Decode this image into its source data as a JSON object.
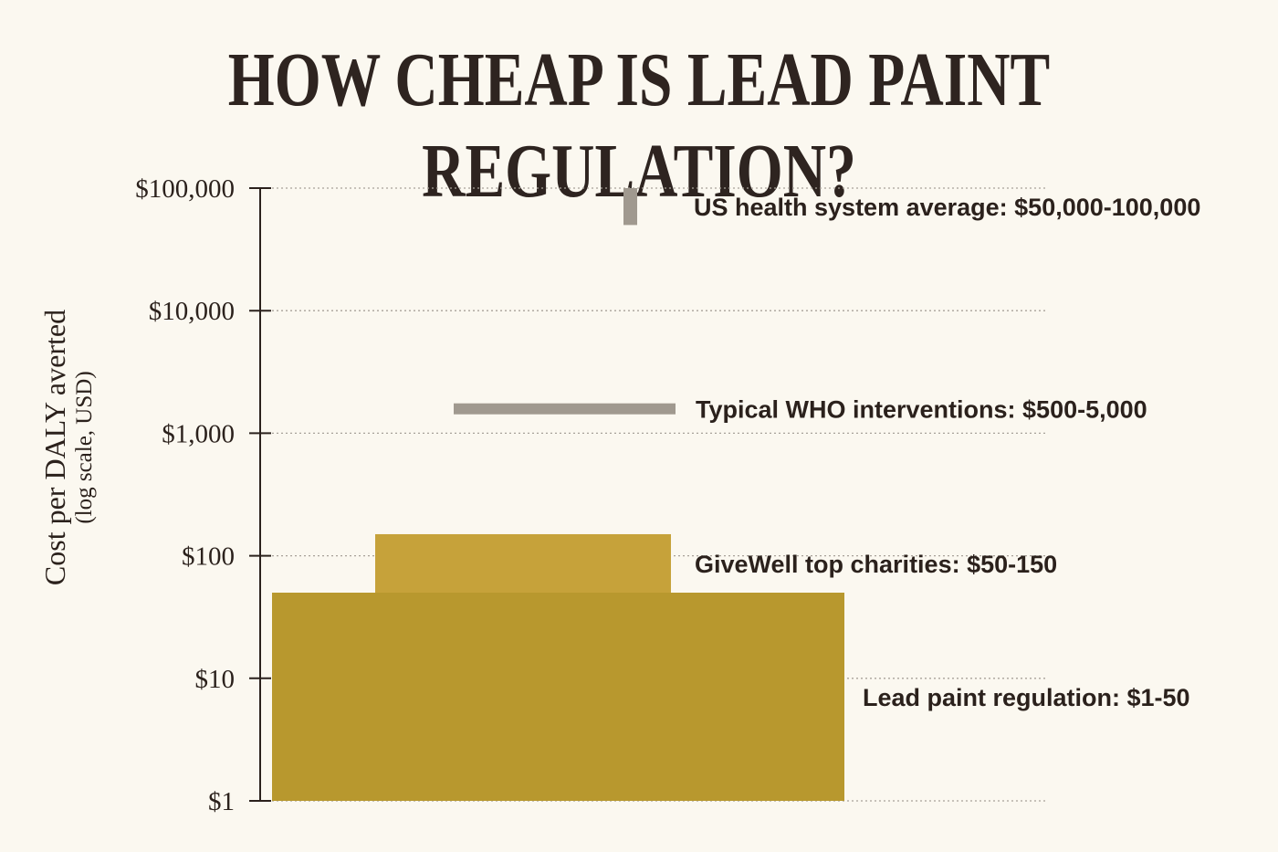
{
  "chart_data": {
    "type": "bar",
    "orientation": "horizontal-range",
    "title": "HOW CHEAP IS LEAD PAINT REGULATION?",
    "ylabel": "Cost per DALY averted",
    "ylabel_sub": "(log scale, USD)",
    "yscale": "log",
    "ylim": [
      1,
      100000
    ],
    "grid": true,
    "yticks": [
      {
        "value": 1,
        "label": "$1"
      },
      {
        "value": 10,
        "label": "$10"
      },
      {
        "value": 100,
        "label": "$100"
      },
      {
        "value": 1000,
        "label": "$1,000"
      },
      {
        "value": 10000,
        "label": "$10,000"
      },
      {
        "value": 100000,
        "label": "$100,000"
      }
    ],
    "series": [
      {
        "label": "US health system average: $50,000-100,000",
        "low": 50000,
        "high": 100000,
        "color": "#a0998f"
      },
      {
        "label": "Typical WHO interventions: $500-5,000",
        "low": 500,
        "high": 5000,
        "color": "#a0998f"
      },
      {
        "label": "GiveWell top charities: $50-150",
        "low": 50,
        "high": 150,
        "color": "#c6a23a"
      },
      {
        "label": "Lead paint regulation: $1-50",
        "low": 1,
        "high": 50,
        "color": "#b8982e"
      }
    ]
  }
}
